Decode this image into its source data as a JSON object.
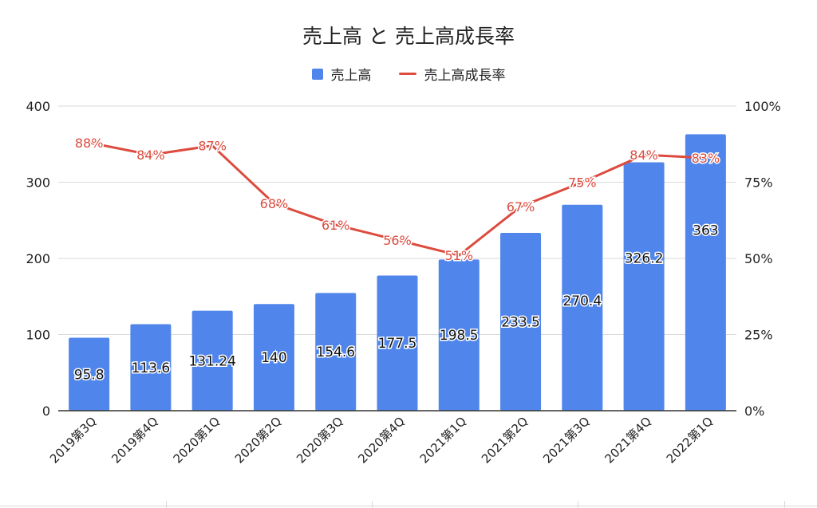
{
  "chart_data": {
    "type": "bar",
    "title": "売上高 と 売上高成長率",
    "categories": [
      "2019第3Q",
      "2019第4Q",
      "2020第1Q",
      "2020第2Q",
      "2020第3Q",
      "2020第4Q",
      "2021第1Q",
      "2021第2Q",
      "2021第3Q",
      "2021第4Q",
      "2022第1Q"
    ],
    "series": [
      {
        "name": "売上高",
        "type": "bar",
        "axis": "left",
        "color": "#5086ec",
        "values": [
          95.8,
          113.6,
          131.24,
          140,
          154.6,
          177.5,
          198.5,
          233.5,
          270.4,
          326.2,
          363
        ],
        "data_labels": [
          "95.8",
          "113.6",
          "131.24",
          "140",
          "154.6",
          "177.5",
          "198.5",
          "233.5",
          "270.4",
          "326.2",
          "363"
        ]
      },
      {
        "name": "売上高成長率",
        "type": "line",
        "axis": "right",
        "color": "#dc4b3e",
        "values": [
          88,
          84,
          87,
          68,
          61,
          56,
          51,
          67,
          75,
          84,
          83
        ],
        "data_labels": [
          "88%",
          "84%",
          "87%",
          "68%",
          "61%",
          "56%",
          "51%",
          "67%",
          "75%",
          "84%",
          "83%"
        ]
      }
    ],
    "y_left": {
      "range": [
        0,
        400
      ],
      "ticks": [
        "0",
        "100",
        "200",
        "300",
        "400"
      ]
    },
    "y_right": {
      "range": [
        0,
        100
      ],
      "ticks": [
        "0%",
        "25%",
        "50%",
        "75%",
        "100%"
      ]
    },
    "grid": true,
    "legend_position": "top"
  }
}
